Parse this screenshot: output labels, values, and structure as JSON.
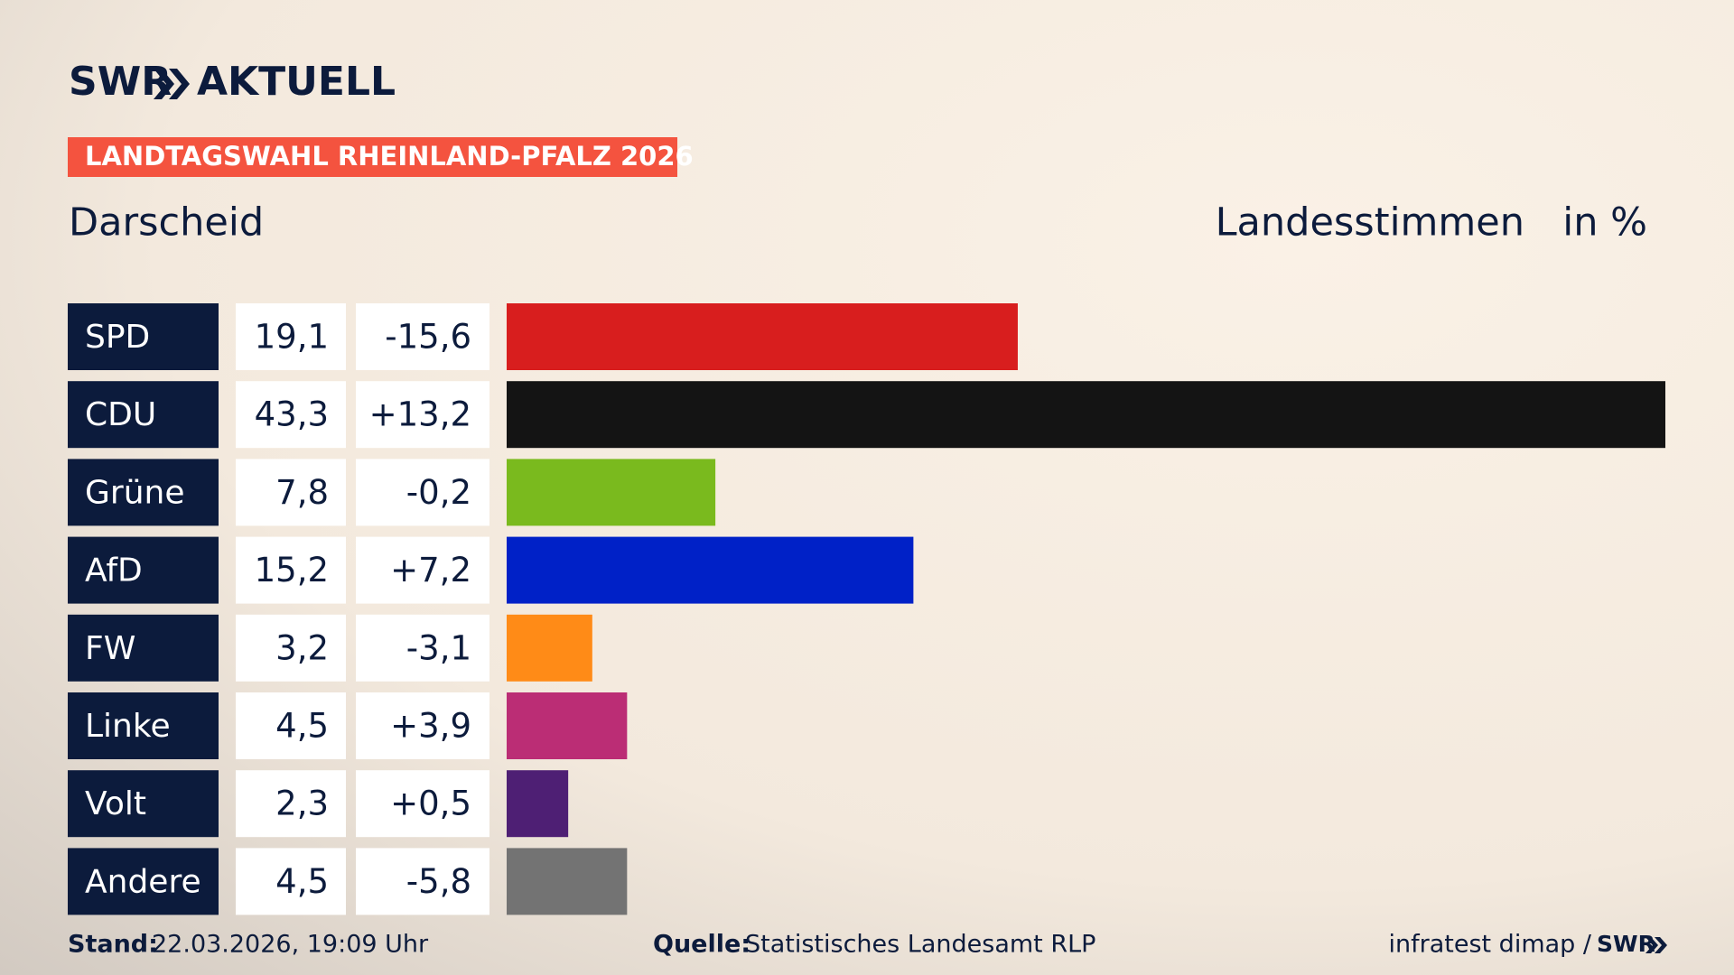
{
  "header": {
    "brand": "SWR",
    "brand_suffix": "AKTUELL",
    "badge": "LANDTAGSWAHL RHEINLAND-PFALZ 2026"
  },
  "chart_data": {
    "type": "bar",
    "title": "Darscheid",
    "subtitle": "Landesstimmen",
    "unit": "in %",
    "categories": [
      "SPD",
      "CDU",
      "Grüne",
      "AfD",
      "FW",
      "Linke",
      "Volt",
      "Andere"
    ],
    "values": [
      19.1,
      43.3,
      7.8,
      15.2,
      3.2,
      4.5,
      2.3,
      4.5
    ],
    "value_labels": [
      "19,1",
      "43,3",
      "7,8",
      "15,2",
      "3,2",
      "4,5",
      "2,3",
      "4,5"
    ],
    "changes": [
      -15.6,
      13.2,
      -0.2,
      7.2,
      -3.1,
      3.9,
      0.5,
      -5.8
    ],
    "change_labels": [
      "-15,6",
      "+13,2",
      "-0,2",
      "+7,2",
      "-3,1",
      "+3,9",
      "+0,5",
      "-5,8"
    ],
    "colors": [
      "#d81e1e",
      "#141414",
      "#7aba1e",
      "#0021c7",
      "#ff8b17",
      "#bb2d75",
      "#4e1f74",
      "#737373"
    ]
  },
  "footer": {
    "stand_label": "Stand:",
    "stand": "22.03.2026, 19:09 Uhr",
    "source_label": "Quelle:",
    "source": "Statistisches Landesamt RLP",
    "credit": "infratest dimap /",
    "credit_brand": "SWR"
  }
}
